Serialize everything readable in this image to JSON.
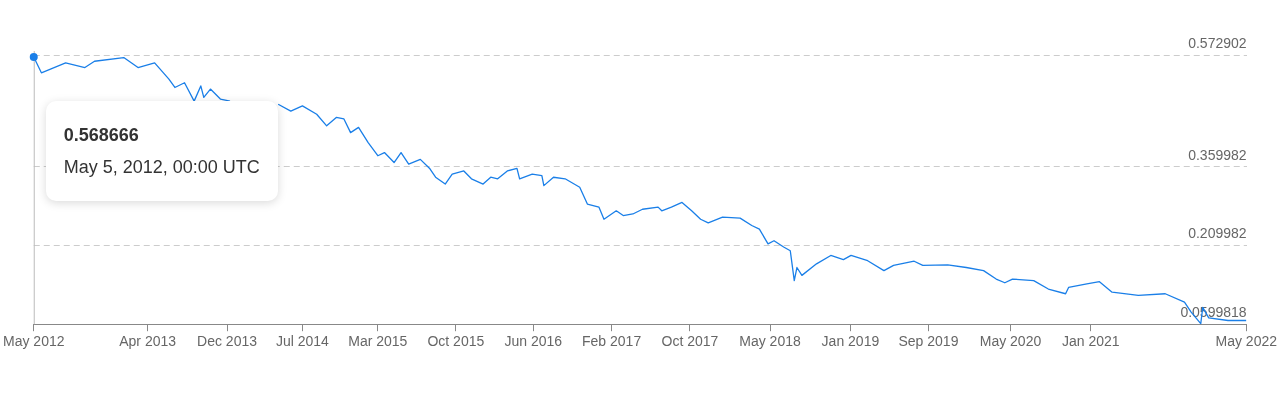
{
  "chart_data": {
    "type": "line",
    "annotations": [
      "0.568666",
      "May 5, 2012, 00:00 UTC"
    ],
    "x": [
      "2012-05-05",
      "2012-05-28",
      "2012-08-09",
      "2012-10-06",
      "2012-11-04",
      "2013-01-31",
      "2013-03-15",
      "2013-05-04",
      "2013-06-16",
      "2013-07-04",
      "2013-08-02",
      "2013-08-31",
      "2013-09-20",
      "2013-09-29",
      "2013-10-19",
      "2013-11-18",
      "2013-12-17",
      "2014-01-15",
      "2014-05-11",
      "2014-06-18",
      "2014-07-23",
      "2014-09-04",
      "2014-10-04",
      "2014-11-02",
      "2014-11-25",
      "2014-12-15",
      "2015-01-08",
      "2015-02-06",
      "2015-03-07",
      "2015-03-27",
      "2015-04-25",
      "2015-05-16",
      "2015-06-08",
      "2015-07-13",
      "2015-08-11",
      "2015-08-28",
      "2015-09-26",
      "2015-10-17",
      "2015-11-21",
      "2015-12-14",
      "2016-01-18",
      "2016-02-10",
      "2016-03-02",
      "2016-03-31",
      "2016-04-29",
      "2016-05-07",
      "2016-06-14",
      "2016-07-13",
      "2016-07-19",
      "2016-08-17",
      "2016-09-21",
      "2016-11-04",
      "2016-11-27",
      "2017-01-01",
      "2017-01-16",
      "2017-02-22",
      "2017-03-15",
      "2017-04-13",
      "2017-05-12",
      "2017-06-28",
      "2017-07-09",
      "2017-08-07",
      "2017-09-08",
      "2017-10-07",
      "2017-11-03",
      "2017-11-26",
      "2018-01-08",
      "2018-03-02",
      "2018-04-06",
      "2018-04-29",
      "2018-05-25",
      "2018-06-12",
      "2018-07-11",
      "2018-07-31",
      "2018-08-12",
      "2018-08-20",
      "2018-09-04",
      "2018-10-18",
      "2018-11-30",
      "2019-01-07",
      "2019-01-30",
      "2019-03-21",
      "2019-05-09",
      "2019-06-07",
      "2019-08-08",
      "2019-09-03",
      "2019-11-17",
      "2020-01-12",
      "2020-03-04",
      "2020-04-11",
      "2020-05-07",
      "2020-05-30",
      "2020-08-02",
      "2020-09-15",
      "2020-11-06",
      "2020-11-15",
      "2021-01-09",
      "2021-02-16",
      "2021-03-26",
      "2021-06-13",
      "2021-09-02",
      "2021-10-30",
      "2021-11-19",
      "2021-12-18",
      "2021-12-24",
      "2022-01-11",
      "2022-03-10",
      "2022-05-04"
    ],
    "series": [
      {
        "color": "#1a7fe8",
        "values": [
          0.569,
          0.539,
          0.558,
          0.549,
          0.561,
          0.568,
          0.549,
          0.558,
          0.527,
          0.511,
          0.52,
          0.485,
          0.514,
          0.492,
          0.508,
          0.489,
          0.485,
          null,
          0.479,
          0.466,
          0.476,
          0.46,
          0.438,
          0.454,
          0.451,
          0.425,
          0.435,
          0.406,
          0.381,
          0.387,
          0.368,
          0.387,
          0.365,
          0.374,
          0.356,
          0.34,
          0.327,
          0.346,
          0.352,
          0.337,
          0.327,
          0.34,
          0.337,
          0.352,
          0.357,
          0.337,
          0.346,
          0.343,
          0.324,
          0.34,
          0.337,
          0.321,
          0.289,
          0.283,
          0.26,
          0.276,
          0.267,
          0.27,
          0.279,
          0.283,
          0.276,
          0.283,
          0.292,
          0.276,
          0.26,
          0.253,
          0.264,
          0.262,
          0.248,
          0.241,
          0.213,
          0.219,
          0.207,
          0.2,
          0.143,
          0.168,
          0.153,
          0.175,
          0.191,
          0.183,
          0.191,
          0.181,
          0.162,
          0.172,
          0.18,
          0.172,
          0.173,
          0.168,
          0.162,
          0.146,
          0.139,
          0.146,
          0.143,
          0.127,
          0.118,
          0.13,
          0.137,
          0.141,
          0.121,
          0.115,
          0.118,
          0.102,
          0.083,
          0.061,
          0.092,
          0.072,
          0.067,
          0.067
        ]
      }
    ],
    "xlim": [
      "2012-05-05",
      "2022-05-05"
    ],
    "xticks": [
      {
        "value": "2012-05-05",
        "label": "May 2012"
      },
      {
        "value": "2013-04-13",
        "label": "Apr 2013"
      },
      {
        "value": "2013-12-08",
        "label": "Dec 2013"
      },
      {
        "value": "2014-07-23",
        "label": "Jul 2014"
      },
      {
        "value": "2015-03-07",
        "label": "Mar 2015"
      },
      {
        "value": "2015-10-28",
        "label": "Oct 2015"
      },
      {
        "value": "2016-06-17",
        "label": "Jun 2016"
      },
      {
        "value": "2017-02-08",
        "label": "Feb 2017"
      },
      {
        "value": "2017-10-02",
        "label": "Oct 2017"
      },
      {
        "value": "2018-05-31",
        "label": "May 2018"
      },
      {
        "value": "2019-01-28",
        "label": "Jan 2019"
      },
      {
        "value": "2019-09-20",
        "label": "Sep 2019"
      },
      {
        "value": "2020-05-24",
        "label": "May 2020"
      },
      {
        "value": "2021-01-21",
        "label": "Jan 2021"
      },
      {
        "value": "2022-05-04",
        "label": "May 2022"
      }
    ],
    "ylim": [
      0.0599818,
      0.572902
    ],
    "yticks": [
      0.0599818,
      0.209982,
      0.359982,
      0.572902
    ],
    "grid": "y",
    "legend": false,
    "marker": "none",
    "line_style": "solid"
  }
}
